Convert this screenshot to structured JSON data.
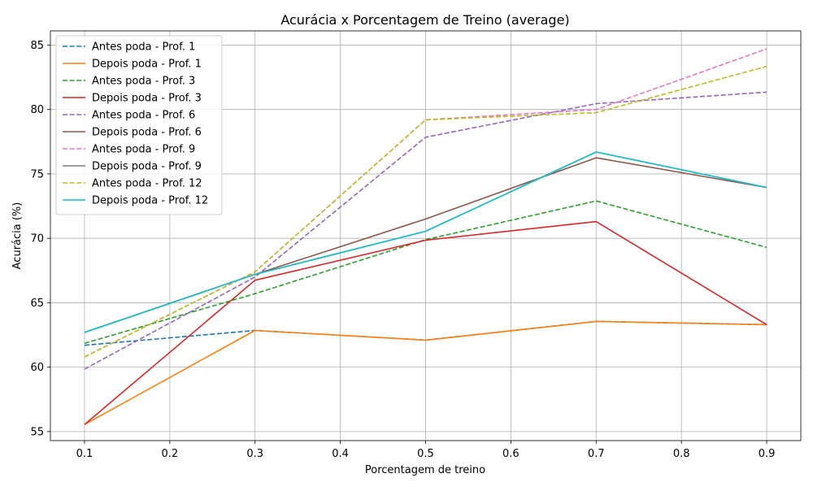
{
  "chart_data": {
    "type": "line",
    "title": "Acurácia x Porcentagem de Treino (average)",
    "xlabel": "Porcentagem de treino",
    "ylabel": "Acurácia (%)",
    "xlim": [
      0.06,
      0.94
    ],
    "ylim": [
      54.3,
      86.1
    ],
    "x": [
      0.1,
      0.3,
      0.5,
      0.7,
      0.9
    ],
    "x_ticks": [
      0.1,
      0.2,
      0.3,
      0.4,
      0.5,
      0.6,
      0.7,
      0.8,
      0.9
    ],
    "x_tick_labels": [
      "0.1",
      "0.2",
      "0.3",
      "0.4",
      "0.5",
      "0.6",
      "0.7",
      "0.8",
      "0.9"
    ],
    "y_ticks": [
      55,
      60,
      65,
      70,
      75,
      80,
      85
    ],
    "y_tick_labels": [
      "55",
      "60",
      "65",
      "70",
      "75",
      "80",
      "85"
    ],
    "grid": true,
    "legend_position": "top-left",
    "series": [
      {
        "name": "Antes poda - Prof. 1",
        "color": "#1f77b4",
        "dashed": true,
        "values": [
          61.7,
          62.85,
          62.1,
          63.55,
          63.3
        ]
      },
      {
        "name": "Depois poda - Prof. 1",
        "color": "#ff7f0e",
        "dashed": false,
        "values": [
          55.55,
          62.85,
          62.1,
          63.55,
          63.3
        ]
      },
      {
        "name": "Antes poda - Prof. 3",
        "color": "#2ca02c",
        "dashed": true,
        "values": [
          61.85,
          65.7,
          69.9,
          72.9,
          69.3
        ]
      },
      {
        "name": "Depois poda - Prof. 3",
        "color": "#d62728",
        "dashed": false,
        "values": [
          55.55,
          66.75,
          69.85,
          71.3,
          63.3
        ]
      },
      {
        "name": "Antes poda - Prof. 6",
        "color": "#9467bd",
        "dashed": true,
        "values": [
          59.85,
          67.0,
          77.85,
          80.45,
          81.35
        ]
      },
      {
        "name": "Depois poda - Prof. 6",
        "color": "#8c564b",
        "dashed": false,
        "values": [
          62.7,
          67.2,
          71.5,
          76.25,
          73.95
        ]
      },
      {
        "name": "Antes poda - Prof. 9",
        "color": "#e377c2",
        "dashed": true,
        "values": [
          60.8,
          67.4,
          79.2,
          80.0,
          84.7
        ]
      },
      {
        "name": "Depois poda - Prof. 9",
        "color": "#7f7f7f",
        "dashed": false,
        "values": [
          62.7,
          67.2,
          70.55,
          76.7,
          73.95
        ]
      },
      {
        "name": "Antes poda - Prof. 12",
        "color": "#bcbd22",
        "dashed": true,
        "values": [
          60.8,
          67.4,
          79.2,
          79.75,
          83.35
        ]
      },
      {
        "name": "Depois poda - Prof. 12",
        "color": "#17becf",
        "dashed": false,
        "values": [
          62.7,
          67.2,
          70.55,
          76.7,
          73.95
        ]
      }
    ]
  }
}
